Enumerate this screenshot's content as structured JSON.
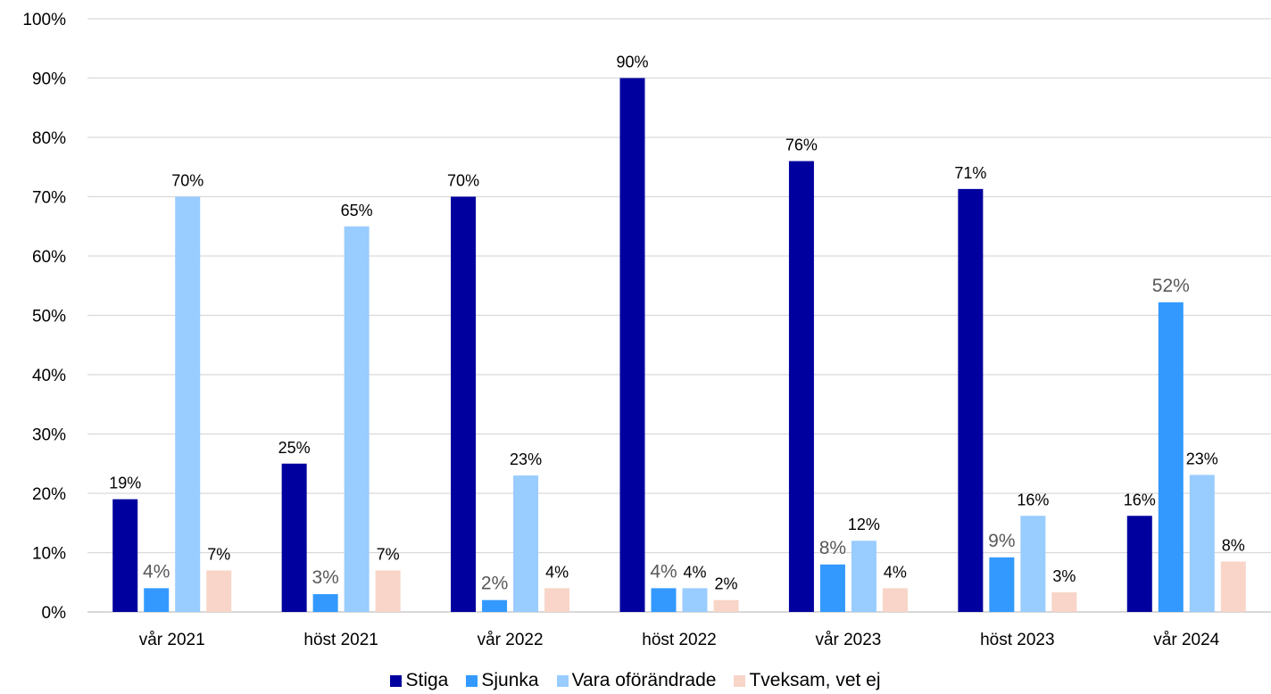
{
  "chart_data": {
    "type": "bar",
    "categories": [
      "vår 2021",
      "höst 2021",
      "vår 2022",
      "höst 2022",
      "vår 2023",
      "höst 2023",
      "vår 2024"
    ],
    "series": [
      {
        "name": "Stiga",
        "color": "#00009E",
        "values": [
          19,
          25,
          70,
          90,
          76,
          71.3,
          16.2
        ],
        "labels": [
          "19%",
          "25%",
          "70%",
          "90%",
          "76%",
          "71%",
          "16%"
        ]
      },
      {
        "name": "Sjunka",
        "color": "#3399FF",
        "values": [
          4,
          3,
          2,
          4,
          8,
          9.2,
          52.2
        ],
        "labels": [
          "4%",
          "3%",
          "2%",
          "4%",
          "8%",
          "9%",
          "52%"
        ]
      },
      {
        "name": "Vara oförändrade",
        "color": "#99CCFF",
        "values": [
          70,
          65,
          23,
          4,
          12,
          16.2,
          23.1
        ],
        "labels": [
          "70%",
          "65%",
          "23%",
          "4%",
          "12%",
          "16%",
          "23%"
        ]
      },
      {
        "name": "Tveksam, vet ej",
        "color": "#F8D5C8",
        "values": [
          7,
          7,
          4,
          2,
          4,
          3.3,
          8.5
        ],
        "labels": [
          "7%",
          "7%",
          "4%",
          "2%",
          "4%",
          "3%",
          "8%"
        ]
      }
    ],
    "y_ticks": [
      "0%",
      "10%",
      "20%",
      "30%",
      "40%",
      "50%",
      "60%",
      "70%",
      "80%",
      "90%",
      "100%"
    ],
    "ylim": [
      0,
      100
    ],
    "grid": true,
    "legend_position": "bottom"
  }
}
